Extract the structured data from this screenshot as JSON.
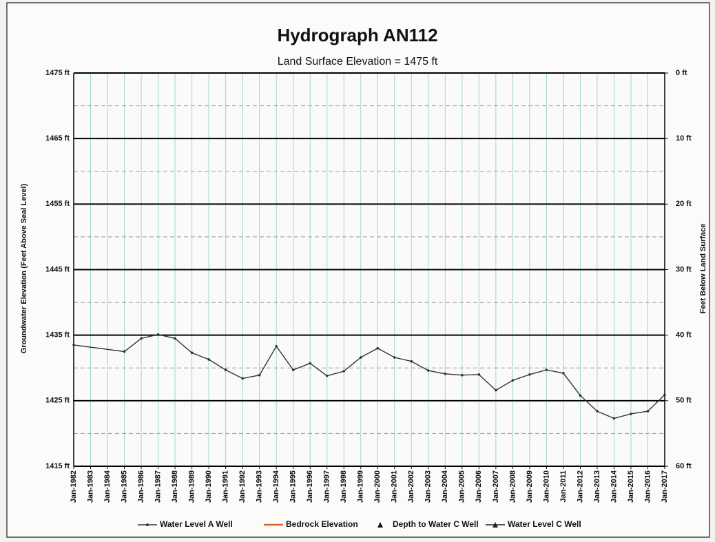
{
  "chart_data": {
    "type": "line",
    "title": "Hydrograph AN112",
    "subtitle": "Land Surface Elevation = 1475 ft",
    "ylabel": "Groundwater Elevation (Feet Above Seal Level)",
    "y2label": "Feet Below Land Surface",
    "categories": [
      "Jan-1982",
      "Jan-1983",
      "Jan-1984",
      "Jan-1985",
      "Jan-1986",
      "Jan-1987",
      "Jan-1988",
      "Jan-1989",
      "Jan-1990",
      "Jan-1991",
      "Jan-1992",
      "Jan-1993",
      "Jan-1994",
      "Jan-1995",
      "Jan-1996",
      "Jan-1997",
      "Jan-1998",
      "Jan-1999",
      "Jan-2000",
      "Jan-2001",
      "Jan-2002",
      "Jan-2003",
      "Jan-2004",
      "Jan-2005",
      "Jan-2006",
      "Jan-2007",
      "Jan-2008",
      "Jan-2009",
      "Jan-2010",
      "Jan-2011",
      "Jan-2012",
      "Jan-2013",
      "Jan-2014",
      "Jan-2015",
      "Jan-2016",
      "Jan-2017"
    ],
    "series": [
      {
        "name": "Water Level A Well",
        "color": "#333333",
        "marker": "dot",
        "x": [
          "Jan-1982",
          "Jan-1985",
          "Jan-1986",
          "Jan-1987",
          "Jan-1988",
          "Jan-1989",
          "Jan-1990",
          "Jan-1991",
          "Jan-1992",
          "Jan-1993",
          "Jan-1994",
          "Jan-1995",
          "Jan-1996",
          "Jan-1997",
          "Jan-1998",
          "Jan-1999",
          "Jan-2000",
          "Jan-2001",
          "Jan-2002",
          "Jan-2003",
          "Jan-2004",
          "Jan-2005",
          "Jan-2006",
          "Jan-2007",
          "Jan-2008",
          "Jan-2009",
          "Jan-2010",
          "Jan-2011",
          "Jan-2012",
          "Jan-2013",
          "Jan-2014",
          "Jan-2015",
          "Jan-2016",
          "Jan-2017"
        ],
        "values": [
          1433.5,
          1432.5,
          1434.5,
          1435.1,
          1434.5,
          1432.3,
          1431.3,
          1429.7,
          1428.4,
          1428.9,
          1433.3,
          1429.7,
          1430.7,
          1428.8,
          1429.5,
          1431.6,
          1433.0,
          1431.6,
          1431.0,
          1429.6,
          1429.1,
          1428.9,
          1429.0,
          1426.6,
          1428.1,
          1429.0,
          1429.7,
          1429.2,
          1425.8,
          1423.4,
          1422.3,
          1423.0,
          1423.4,
          1425.9
        ]
      },
      {
        "name": "Bedrock Elevation",
        "color": "#e0602a",
        "marker": "none"
      },
      {
        "name": "Depth to Water C Well",
        "color": "#111111",
        "marker": "triangle",
        "axis": "y2"
      },
      {
        "name": "Water Level C Well",
        "color": "#222222",
        "marker": "triangle-line"
      }
    ],
    "ylim": [
      1415,
      1475
    ],
    "yticks": [
      {
        "value": 1415,
        "label": "1415 ft"
      },
      {
        "value": 1425,
        "label": "1425 ft"
      },
      {
        "value": 1435,
        "label": "1435 ft"
      },
      {
        "value": 1445,
        "label": "1445 ft"
      },
      {
        "value": 1455,
        "label": "1455 ft"
      },
      {
        "value": 1465,
        "label": "1465 ft"
      },
      {
        "value": 1475,
        "label": "1475 ft"
      }
    ],
    "yminorticks": [
      1420,
      1430,
      1440,
      1450,
      1460,
      1470
    ],
    "y2lim": [
      60,
      0
    ],
    "y2ticks": [
      {
        "value": 60,
        "label": "60 ft"
      },
      {
        "value": 50,
        "label": "50 ft"
      },
      {
        "value": 40,
        "label": "40 ft"
      },
      {
        "value": 30,
        "label": "30 ft"
      },
      {
        "value": 20,
        "label": "20 ft"
      },
      {
        "value": 10,
        "label": "10 ft"
      },
      {
        "value": 0,
        "label": "0 ft"
      }
    ],
    "grid": true,
    "grid_color": "#000000",
    "minor_grid_color": "#9a9a9a",
    "x_grid_color": "#9fd6cf",
    "legend": "bottom"
  }
}
